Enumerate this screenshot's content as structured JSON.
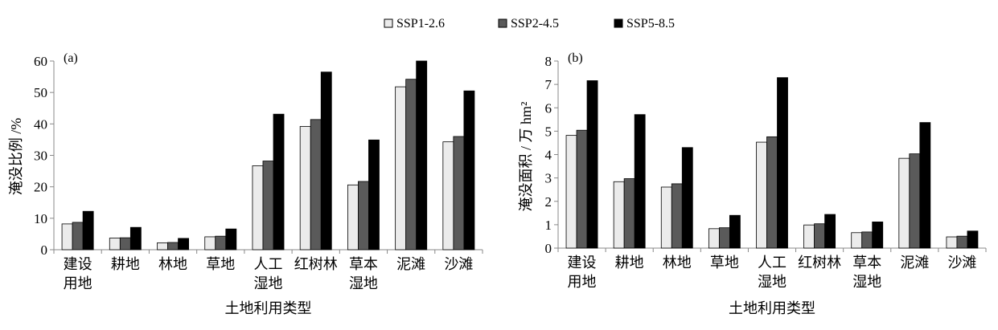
{
  "legend": [
    {
      "name": "SSP1-2.6",
      "color": "#ebebeb"
    },
    {
      "name": "SSP2-4.5",
      "color": "#5a5a5a"
    },
    {
      "name": "SSP5-8.5",
      "color": "#000000"
    }
  ],
  "chart_data": [
    {
      "type": "bar",
      "panel_label": "(a)",
      "ylabel": "淹没比例 /%",
      "xlabel": "土地利用类型",
      "ylim": [
        0,
        60
      ],
      "yticks": [
        0,
        10,
        20,
        30,
        40,
        50,
        60
      ],
      "categories": [
        "建设\n用地",
        "耕地",
        "林地",
        "草地",
        "人工\n湿地",
        "红树林",
        "草本\n湿地",
        "泥滩",
        "沙滩"
      ],
      "series": [
        {
          "name": "SSP1-2.6",
          "values": [
            8.2,
            3.7,
            2.2,
            4.1,
            26.7,
            39.2,
            20.6,
            51.8,
            34.3
          ]
        },
        {
          "name": "SSP2-4.5",
          "values": [
            8.7,
            3.8,
            2.3,
            4.3,
            28.2,
            41.4,
            21.7,
            54.2,
            36.0
          ]
        },
        {
          "name": "SSP5-8.5",
          "values": [
            12.2,
            7.1,
            3.6,
            6.6,
            43.1,
            56.5,
            34.9,
            60.0,
            50.5
          ]
        }
      ],
      "grid": false,
      "legend_position": "top"
    },
    {
      "type": "bar",
      "panel_label": "(b)",
      "ylabel": "淹没面积 / 万 hm²",
      "xlabel": "土地利用类型",
      "ylim": [
        0,
        8
      ],
      "yticks": [
        0,
        1,
        2,
        3,
        4,
        5,
        6,
        7,
        8
      ],
      "categories": [
        "建设\n用地",
        "耕地",
        "林地",
        "草地",
        "人工\n湿地",
        "红树林",
        "草本\n湿地",
        "泥滩",
        "沙滩"
      ],
      "series": [
        {
          "name": "SSP1-2.6",
          "values": [
            4.82,
            2.84,
            2.61,
            0.83,
            4.53,
            0.99,
            0.66,
            3.84,
            0.48
          ]
        },
        {
          "name": "SSP2-4.5",
          "values": [
            5.04,
            2.97,
            2.75,
            0.87,
            4.76,
            1.04,
            0.69,
            4.03,
            0.51
          ]
        },
        {
          "name": "SSP5-8.5",
          "values": [
            7.16,
            5.71,
            4.3,
            1.4,
            7.29,
            1.44,
            1.12,
            5.37,
            0.73
          ]
        }
      ],
      "grid": false,
      "legend_position": "top"
    }
  ]
}
